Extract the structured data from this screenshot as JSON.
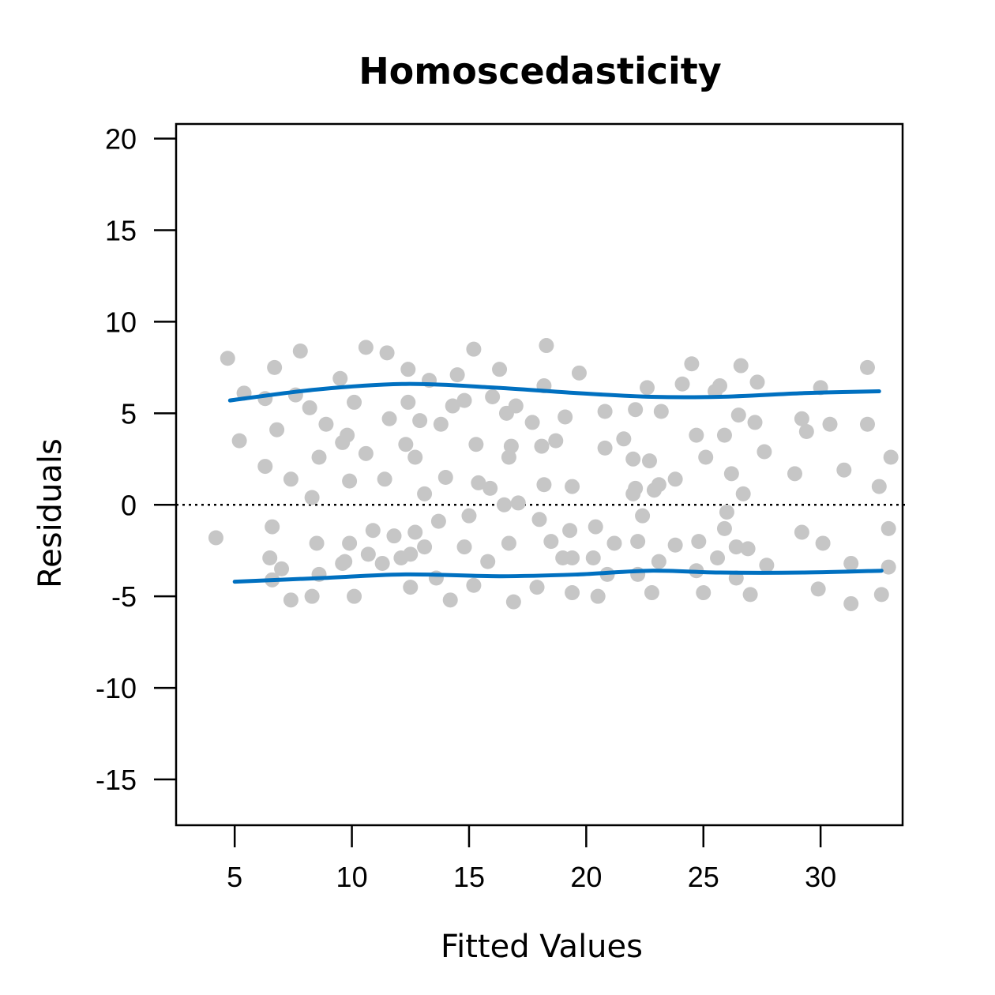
{
  "chart_data": {
    "type": "scatter",
    "title": "Homoscedasticity",
    "xlabel": "Fitted Values",
    "ylabel": "Residuals",
    "xlim": [
      2.5,
      33.5
    ],
    "ylim": [
      -17.5,
      20.8
    ],
    "x_ticks": [
      5,
      10,
      15,
      20,
      25,
      30
    ],
    "y_ticks": [
      -15,
      -10,
      -5,
      0,
      5,
      10,
      15,
      20
    ],
    "grid": false,
    "legend": "none",
    "reference_line": {
      "y": 0,
      "style": "dotted",
      "color": "#000000"
    },
    "colors": {
      "points": "#c6c6c6",
      "bands": "#0070c0"
    },
    "points": [
      [
        4.2,
        -1.8
      ],
      [
        4.7,
        8.0
      ],
      [
        5.2,
        3.5
      ],
      [
        5.4,
        6.1
      ],
      [
        6.3,
        5.8
      ],
      [
        6.3,
        2.1
      ],
      [
        6.5,
        -2.9
      ],
      [
        6.6,
        -4.1
      ],
      [
        6.6,
        -1.2
      ],
      [
        6.7,
        7.5
      ],
      [
        6.8,
        4.1
      ],
      [
        7.0,
        -3.5
      ],
      [
        7.4,
        -5.2
      ],
      [
        7.4,
        1.4
      ],
      [
        7.6,
        6.0
      ],
      [
        7.8,
        8.4
      ],
      [
        8.2,
        5.3
      ],
      [
        8.3,
        0.4
      ],
      [
        8.3,
        -5.0
      ],
      [
        8.5,
        -2.1
      ],
      [
        8.6,
        -3.8
      ],
      [
        8.6,
        2.6
      ],
      [
        8.9,
        4.4
      ],
      [
        9.5,
        6.9
      ],
      [
        9.6,
        -3.2
      ],
      [
        9.6,
        3.4
      ],
      [
        9.7,
        -3.1
      ],
      [
        9.8,
        3.8
      ],
      [
        9.9,
        -2.1
      ],
      [
        9.9,
        1.3
      ],
      [
        10.1,
        5.6
      ],
      [
        10.1,
        -5.0
      ],
      [
        10.6,
        8.6
      ],
      [
        10.6,
        2.8
      ],
      [
        10.7,
        -2.7
      ],
      [
        10.9,
        -1.4
      ],
      [
        11.3,
        -3.2
      ],
      [
        11.4,
        1.4
      ],
      [
        11.5,
        8.3
      ],
      [
        11.6,
        4.7
      ],
      [
        11.8,
        -1.7
      ],
      [
        12.1,
        -2.9
      ],
      [
        12.3,
        3.3
      ],
      [
        12.4,
        7.4
      ],
      [
        12.4,
        5.6
      ],
      [
        12.5,
        -4.5
      ],
      [
        12.5,
        -2.7
      ],
      [
        12.7,
        2.6
      ],
      [
        12.7,
        -1.5
      ],
      [
        12.9,
        4.6
      ],
      [
        13.1,
        -2.3
      ],
      [
        13.1,
        0.6
      ],
      [
        13.3,
        6.8
      ],
      [
        13.6,
        -4.0
      ],
      [
        13.7,
        -0.9
      ],
      [
        13.8,
        4.4
      ],
      [
        14.0,
        1.5
      ],
      [
        14.2,
        -5.2
      ],
      [
        14.3,
        5.4
      ],
      [
        14.5,
        7.1
      ],
      [
        14.8,
        5.7
      ],
      [
        14.8,
        -2.3
      ],
      [
        15.0,
        -0.6
      ],
      [
        15.2,
        8.5
      ],
      [
        15.2,
        -4.4
      ],
      [
        15.3,
        3.3
      ],
      [
        15.4,
        1.2
      ],
      [
        15.8,
        -3.1
      ],
      [
        15.9,
        0.9
      ],
      [
        16.0,
        5.9
      ],
      [
        16.3,
        7.4
      ],
      [
        16.5,
        0.0
      ],
      [
        16.6,
        5.0
      ],
      [
        16.7,
        -2.1
      ],
      [
        16.7,
        2.6
      ],
      [
        16.8,
        3.2
      ],
      [
        16.9,
        -5.3
      ],
      [
        17.0,
        5.4
      ],
      [
        17.1,
        0.1
      ],
      [
        17.7,
        4.5
      ],
      [
        17.9,
        -4.5
      ],
      [
        18.0,
        -0.8
      ],
      [
        18.1,
        3.2
      ],
      [
        18.2,
        6.5
      ],
      [
        18.2,
        1.1
      ],
      [
        18.3,
        8.7
      ],
      [
        18.5,
        -2.0
      ],
      [
        18.7,
        3.5
      ],
      [
        19.0,
        -2.9
      ],
      [
        19.1,
        4.8
      ],
      [
        19.3,
        -1.4
      ],
      [
        19.4,
        -2.9
      ],
      [
        19.4,
        -4.8
      ],
      [
        19.4,
        1.0
      ],
      [
        19.7,
        7.2
      ],
      [
        20.3,
        -2.9
      ],
      [
        20.4,
        -1.2
      ],
      [
        20.5,
        -5.0
      ],
      [
        20.8,
        5.1
      ],
      [
        20.8,
        3.1
      ],
      [
        20.9,
        -3.8
      ],
      [
        21.2,
        -2.1
      ],
      [
        21.6,
        3.6
      ],
      [
        22.0,
        0.6
      ],
      [
        22.0,
        2.5
      ],
      [
        22.1,
        5.2
      ],
      [
        22.1,
        0.9
      ],
      [
        22.2,
        -3.8
      ],
      [
        22.2,
        -2.0
      ],
      [
        22.4,
        -0.6
      ],
      [
        22.6,
        6.4
      ],
      [
        22.7,
        2.4
      ],
      [
        22.8,
        -4.8
      ],
      [
        22.9,
        0.8
      ],
      [
        23.1,
        1.1
      ],
      [
        23.1,
        -3.1
      ],
      [
        23.2,
        5.1
      ],
      [
        23.8,
        -2.2
      ],
      [
        23.8,
        1.4
      ],
      [
        24.1,
        6.6
      ],
      [
        24.5,
        7.7
      ],
      [
        24.7,
        -3.6
      ],
      [
        24.7,
        3.8
      ],
      [
        24.8,
        -2.0
      ],
      [
        25.0,
        -4.8
      ],
      [
        25.1,
        2.6
      ],
      [
        25.5,
        6.2
      ],
      [
        25.6,
        -2.9
      ],
      [
        25.7,
        6.5
      ],
      [
        25.9,
        -1.3
      ],
      [
        25.9,
        3.8
      ],
      [
        26.0,
        -0.4
      ],
      [
        26.2,
        1.7
      ],
      [
        26.4,
        -4.0
      ],
      [
        26.4,
        -2.3
      ],
      [
        26.5,
        4.9
      ],
      [
        26.6,
        7.6
      ],
      [
        26.7,
        0.6
      ],
      [
        26.9,
        -2.4
      ],
      [
        27.0,
        -4.9
      ],
      [
        27.2,
        4.5
      ],
      [
        27.3,
        6.7
      ],
      [
        27.6,
        2.9
      ],
      [
        27.7,
        -3.3
      ],
      [
        28.9,
        1.7
      ],
      [
        29.2,
        4.7
      ],
      [
        29.2,
        -1.5
      ],
      [
        29.4,
        4.0
      ],
      [
        29.9,
        -4.6
      ],
      [
        30.0,
        6.4
      ],
      [
        30.1,
        -2.1
      ],
      [
        30.4,
        4.4
      ],
      [
        31.0,
        1.9
      ],
      [
        31.3,
        -5.4
      ],
      [
        31.3,
        -3.2
      ],
      [
        32.0,
        7.5
      ],
      [
        32.0,
        4.4
      ],
      [
        32.5,
        1.0
      ],
      [
        32.6,
        -4.9
      ],
      [
        32.9,
        -3.4
      ],
      [
        32.9,
        -1.3
      ],
      [
        33.0,
        2.6
      ]
    ],
    "upper_band": [
      [
        4.8,
        5.7
      ],
      [
        8.5,
        6.3
      ],
      [
        12.3,
        6.6
      ],
      [
        16.1,
        6.4
      ],
      [
        19.6,
        6.1
      ],
      [
        22.8,
        5.9
      ],
      [
        25.7,
        5.9
      ],
      [
        29.3,
        6.1
      ],
      [
        32.5,
        6.2
      ]
    ],
    "lower_band": [
      [
        5.0,
        -4.2
      ],
      [
        8.7,
        -4.0
      ],
      [
        12.3,
        -3.8
      ],
      [
        16.3,
        -3.9
      ],
      [
        19.7,
        -3.8
      ],
      [
        22.7,
        -3.6
      ],
      [
        25.7,
        -3.7
      ],
      [
        29.3,
        -3.7
      ],
      [
        32.6,
        -3.6
      ]
    ]
  }
}
